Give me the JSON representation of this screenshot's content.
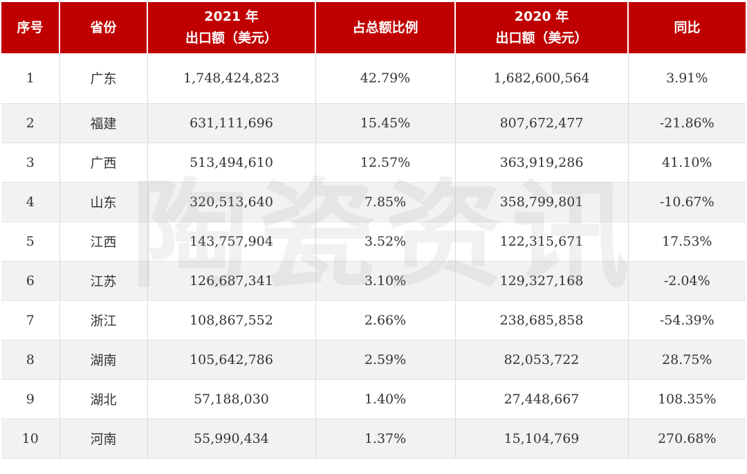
{
  "table": {
    "headers": [
      {
        "line1": "序号",
        "line2": ""
      },
      {
        "line1": "省份",
        "line2": ""
      },
      {
        "line1": "2021 年",
        "line2": "出口额（美元）"
      },
      {
        "line1": "占总额比例",
        "line2": ""
      },
      {
        "line1": "2020 年",
        "line2": "出口额（美元）"
      },
      {
        "line1": "同比",
        "line2": ""
      }
    ],
    "rows": [
      [
        "1",
        "广东",
        "1,748,424,823",
        "42.79%",
        "1,682,600,564",
        "3.91%"
      ],
      [
        "2",
        "福建",
        "631,111,696",
        "15.45%",
        "807,672,477",
        "-21.86%"
      ],
      [
        "3",
        "广西",
        "513,494,610",
        "12.57%",
        "363,919,286",
        "41.10%"
      ],
      [
        "4",
        "山东",
        "320,513,640",
        "7.85%",
        "358,799,801",
        "-10.67%"
      ],
      [
        "5",
        "江西",
        "143,757,904",
        "3.52%",
        "122,315,671",
        "17.53%"
      ],
      [
        "6",
        "江苏",
        "126,687,341",
        "3.10%",
        "129,327,168",
        "-2.04%"
      ],
      [
        "7",
        "浙江",
        "108,867,552",
        "2.66%",
        "238,685,858",
        "-54.39%"
      ],
      [
        "8",
        "湖南",
        "105,642,786",
        "2.59%",
        "82,053,722",
        "28.75%"
      ],
      [
        "9",
        "湖北",
        "57,188,030",
        "1.40%",
        "27,448,667",
        "108.35%"
      ],
      [
        "10",
        "河南",
        "55,990,434",
        "1.37%",
        "15,104,769",
        "270.68%"
      ]
    ]
  },
  "watermark": {
    "text": "陶瓷资讯"
  },
  "colors": {
    "header_bg": "#c00000",
    "header_text": "#ffffff",
    "zebra": "#f2f2f2",
    "text": "#333333"
  }
}
